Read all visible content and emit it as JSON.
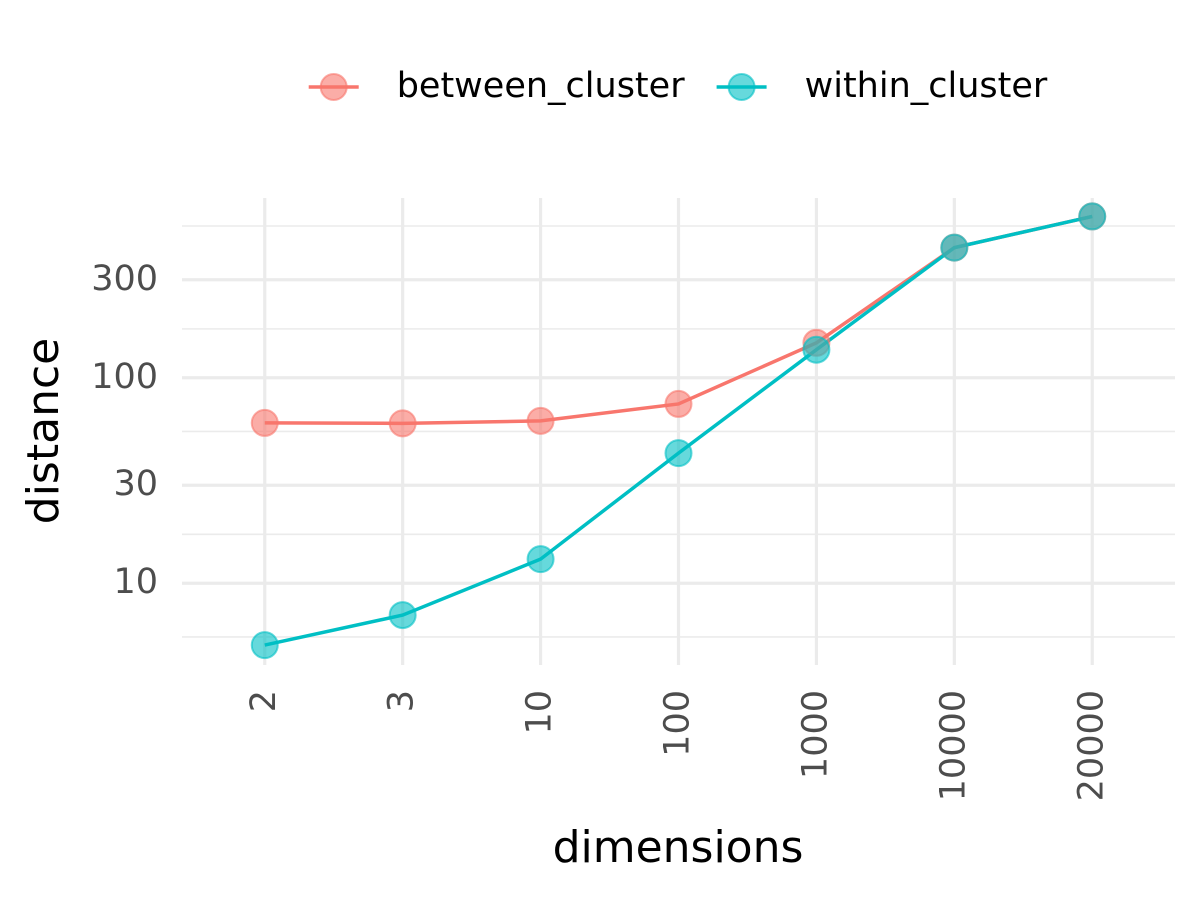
{
  "chart_data": {
    "type": "line",
    "x_label": "dimensions",
    "y_label": "distance",
    "categories": [
      "2",
      "3",
      "10",
      "100",
      "1000",
      "10000",
      "20000"
    ],
    "series": [
      {
        "name": "between_cluster",
        "color": "#F8766D",
        "values": [
          60.3,
          60,
          61.7,
          74.6,
          148,
          430,
          610
        ]
      },
      {
        "name": "within_cluster",
        "color": "#00BFC4",
        "values": [
          5,
          7,
          13.1,
          43,
          137,
          430,
          610
        ]
      }
    ],
    "log_y": true,
    "ylim": [
      4,
      750
    ],
    "yticks": [
      10,
      30,
      100,
      300
    ],
    "yminor": [
      5.48,
      17.3,
      54.8,
      173,
      548
    ],
    "grid": true,
    "legend_position": "top"
  }
}
